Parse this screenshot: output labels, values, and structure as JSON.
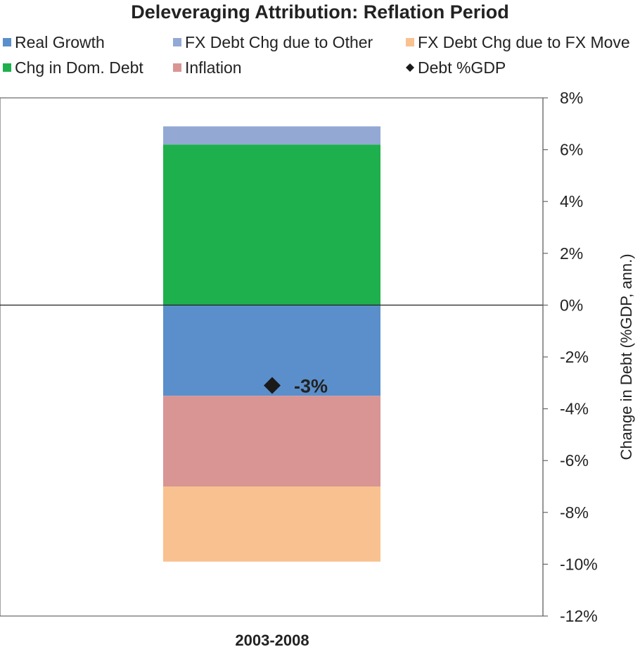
{
  "chart_data": {
    "type": "bar",
    "stacked": true,
    "title": "Deleveraging Attribution: Reflation Period",
    "categories": [
      "2003-2008"
    ],
    "ylabel": "Change in Debt (%GDP, ann.)",
    "ylim": [
      -12,
      8
    ],
    "yticks": [
      "8%",
      "6%",
      "4%",
      "2%",
      "0%",
      "-2%",
      "-4%",
      "-6%",
      "-8%",
      "-10%",
      "-12%"
    ],
    "ytick_values": [
      8,
      6,
      4,
      2,
      0,
      -2,
      -4,
      -6,
      -8,
      -10,
      -12
    ],
    "legend_placement": "top",
    "grid": false,
    "series": [
      {
        "name": "Real Growth",
        "values": [
          -3.5
        ],
        "color": "#5B8FCB"
      },
      {
        "name": "FX Debt Chg due to Other",
        "values": [
          0.7
        ],
        "color": "#93A9D4"
      },
      {
        "name": "FX Debt Chg due to FX Move",
        "values": [
          -2.9
        ],
        "color": "#F9C190"
      },
      {
        "name": "Chg in Dom. Debt",
        "values": [
          6.2
        ],
        "color": "#1EB04C"
      },
      {
        "name": "Inflation",
        "values": [
          -3.5
        ],
        "color": "#D89594"
      }
    ],
    "markers": {
      "name": "Debt %GDP",
      "values": [
        -3.1
      ],
      "label": "-3%",
      "color": "#1a1a1a"
    }
  }
}
